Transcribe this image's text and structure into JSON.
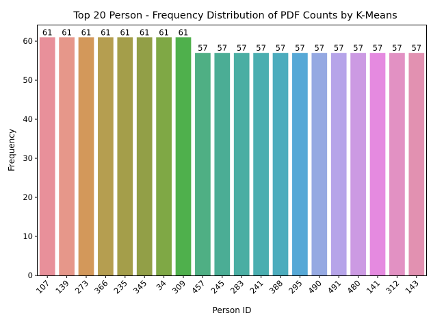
{
  "chart_data": {
    "type": "bar",
    "title": "Top 20 Person - Frequency Distribution of PDF Counts by K-Means",
    "xlabel": "Person ID",
    "ylabel": "Frequency",
    "categories": [
      "107",
      "139",
      "273",
      "366",
      "235",
      "345",
      "34",
      "309",
      "457",
      "245",
      "283",
      "241",
      "388",
      "295",
      "490",
      "491",
      "480",
      "141",
      "312",
      "143"
    ],
    "values": [
      61,
      61,
      61,
      61,
      61,
      61,
      61,
      61,
      57,
      57,
      57,
      57,
      57,
      57,
      57,
      57,
      57,
      57,
      57,
      57
    ],
    "data_labels": [
      "61",
      "61",
      "61",
      "61",
      "61",
      "61",
      "61",
      "61",
      "57",
      "57",
      "57",
      "57",
      "57",
      "57",
      "57",
      "57",
      "57",
      "57",
      "57",
      "57"
    ],
    "ylim": [
      0,
      64.05
    ],
    "yticks": [
      0,
      10,
      20,
      30,
      40,
      50,
      60
    ],
    "ytick_labels": [
      "0",
      "10",
      "20",
      "30",
      "40",
      "50",
      "60"
    ],
    "grid": false,
    "colors": [
      "#e8909a",
      "#e6978a",
      "#d3985a",
      "#b59e50",
      "#a49e4a",
      "#929f47",
      "#7fa845",
      "#4fb04c",
      "#4faf84",
      "#4bad95",
      "#4aaea3",
      "#4aaeb0",
      "#4cacbd",
      "#56a8d6",
      "#95a9e2",
      "#b6a4e9",
      "#cc9ae3",
      "#e58ae0",
      "#e291c3",
      "#e291b1"
    ]
  }
}
